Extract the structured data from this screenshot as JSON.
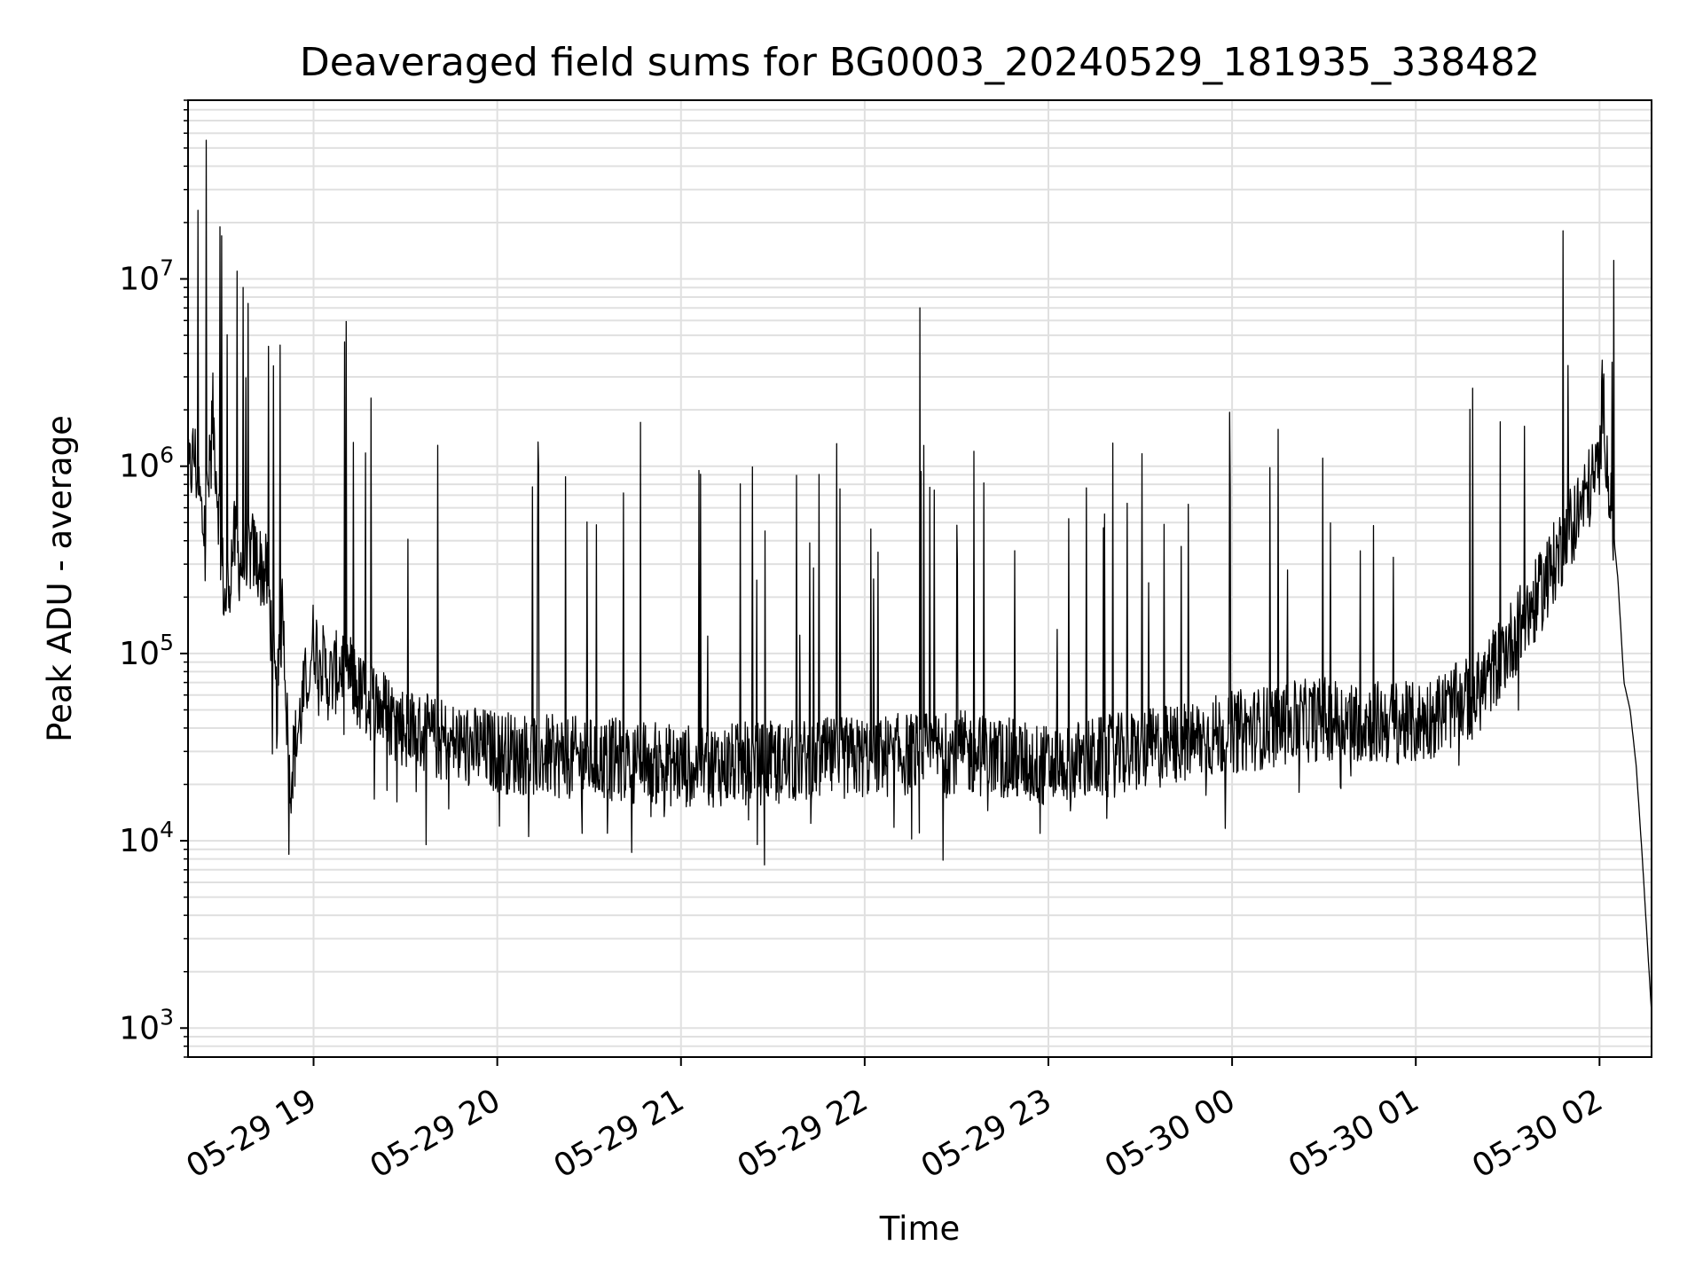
{
  "chart_data": {
    "type": "line",
    "title": "Deaveraged field sums for BG0003_20240529_181935_338482",
    "xlabel": "Time",
    "ylabel": "Peak ADU - average",
    "x_scale": "time",
    "y_scale": "log",
    "xlim": [
      "2024-05-29 18:19",
      "2024-05-30 02:17"
    ],
    "ylim": [
      700,
      90000000
    ],
    "x_ticks": [
      "05-29 19",
      "05-29 20",
      "05-29 21",
      "05-29 22",
      "05-29 23",
      "05-30 00",
      "05-30 01",
      "05-30 02"
    ],
    "x_tick_times": [
      "2024-05-29 19:00",
      "2024-05-29 20:00",
      "2024-05-29 21:00",
      "2024-05-29 22:00",
      "2024-05-29 23:00",
      "2024-05-30 00:00",
      "2024-05-30 01:00",
      "2024-05-30 02:00"
    ],
    "y_ticks": [
      1000,
      10000,
      100000,
      1000000,
      10000000
    ],
    "y_tick_labels": [
      {
        "base": "10",
        "exp": "3"
      },
      {
        "base": "10",
        "exp": "4"
      },
      {
        "base": "10",
        "exp": "5"
      },
      {
        "base": "10",
        "exp": "6"
      },
      {
        "base": "10",
        "exp": "7"
      }
    ],
    "grid": true,
    "legend": "none",
    "line_color": "#000000",
    "grid_color": "#e0e0e0",
    "series": [
      {
        "points": [
          [
            "2024-05-29 18:19",
            800000
          ],
          [
            "2024-05-29 18:21",
            1200000
          ],
          [
            "2024-05-29 18:24",
            450000
          ],
          [
            "2024-05-29 18:25",
            55000000
          ],
          [
            "2024-05-29 18:26",
            900000
          ],
          [
            "2024-05-29 18:27",
            2000000
          ],
          [
            "2024-05-29 18:29",
            600000
          ],
          [
            "2024-05-29 18:30",
            17000000
          ],
          [
            "2024-05-29 18:31",
            180000
          ],
          [
            "2024-05-29 18:34",
            400000
          ],
          [
            "2024-05-29 18:35",
            11000000
          ],
          [
            "2024-05-29 18:36",
            300000
          ],
          [
            "2024-05-29 18:37",
            9000000
          ],
          [
            "2024-05-29 18:40",
            350000
          ],
          [
            "2024-05-29 18:45",
            250000
          ],
          [
            "2024-05-29 18:48",
            50000
          ],
          [
            "2024-05-29 18:50",
            200000
          ],
          [
            "2024-05-29 18:52",
            20000
          ],
          [
            "2024-05-29 19:00",
            120000
          ],
          [
            "2024-05-29 19:05",
            70000
          ],
          [
            "2024-05-29 19:10",
            90000
          ],
          [
            "2024-05-29 19:15",
            60000
          ],
          [
            "2024-05-29 19:20",
            55000
          ],
          [
            "2024-05-29 19:30",
            40000
          ],
          [
            "2024-05-29 19:40",
            35000
          ],
          [
            "2024-05-29 19:50",
            32000
          ],
          [
            "2024-05-29 20:00",
            30000
          ],
          [
            "2024-05-29 20:20",
            28000
          ],
          [
            "2024-05-29 20:40",
            27000
          ],
          [
            "2024-05-29 21:00",
            25000
          ],
          [
            "2024-05-29 21:30",
            26000
          ],
          [
            "2024-05-29 22:00",
            28000
          ],
          [
            "2024-05-29 22:18",
            7000000
          ],
          [
            "2024-05-29 22:30",
            30000
          ],
          [
            "2024-05-29 23:00",
            25000
          ],
          [
            "2024-05-29 23:30",
            30000
          ],
          [
            "2024-05-30 00:00",
            38000
          ],
          [
            "2024-05-30 00:30",
            45000
          ],
          [
            "2024-05-30 01:00",
            42000
          ],
          [
            "2024-05-30 01:20",
            60000
          ],
          [
            "2024-05-30 01:40",
            200000
          ],
          [
            "2024-05-30 01:50",
            450000
          ],
          [
            "2024-05-30 02:00",
            1000000
          ],
          [
            "2024-05-30 02:01",
            2500000
          ],
          [
            "2024-05-30 02:03",
            800000
          ],
          [
            "2024-05-30 02:06",
            250000
          ],
          [
            "2024-05-30 02:08",
            70000
          ],
          [
            "2024-05-30 02:10",
            50000
          ],
          [
            "2024-05-30 02:12",
            25000
          ],
          [
            "2024-05-30 02:14",
            8000
          ],
          [
            "2024-05-30 02:17",
            1200
          ]
        ]
      }
    ]
  }
}
